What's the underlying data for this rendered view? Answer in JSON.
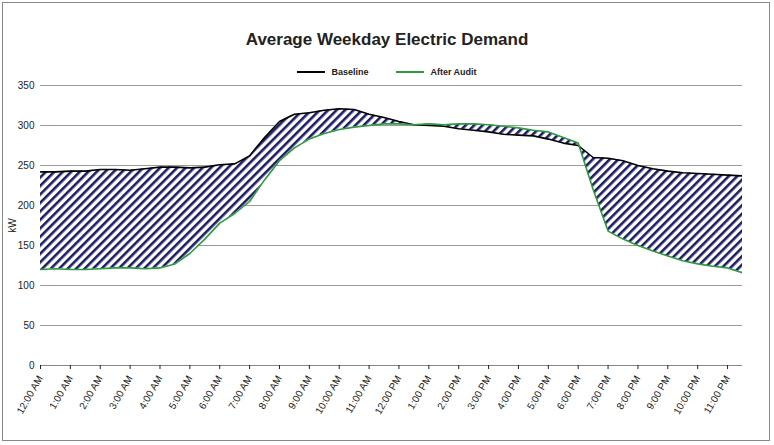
{
  "chart_data": {
    "type": "line",
    "title": "Average Weekday Electric Demand",
    "y_label": "kW",
    "categories": [
      "12:00 AM",
      null,
      "1:00 AM",
      null,
      "2:00 AM",
      null,
      "3:00 AM",
      null,
      "4:00 AM",
      null,
      "5:00 AM",
      null,
      "6:00 AM",
      null,
      "7:00 AM",
      null,
      "8:00 AM",
      null,
      "9:00 AM",
      null,
      "10:00 AM",
      null,
      "11:00 AM",
      null,
      "12:00 PM",
      null,
      "1:00 PM",
      null,
      "2:00 PM",
      null,
      "3:00 PM",
      null,
      "4:00 PM",
      null,
      "5:00 PM",
      null,
      "6:00 PM",
      null,
      "7:00 PM",
      null,
      "8:00 PM",
      null,
      "9:00 PM",
      null,
      "10:00 PM",
      null,
      "11:00 PM",
      null
    ],
    "series": [
      {
        "name": "Baseline",
        "color": "#000000",
        "values": [
          242,
          242,
          243,
          243,
          245,
          245,
          244,
          246,
          248,
          248,
          247,
          248,
          251,
          252,
          262,
          285,
          305,
          314,
          316,
          319,
          321,
          320,
          314,
          310,
          305,
          301,
          300,
          299,
          296,
          294,
          292,
          289,
          288,
          287,
          283,
          278,
          275,
          260,
          259,
          256,
          250,
          246,
          243,
          241,
          240,
          239,
          238,
          237
        ]
      },
      {
        "name": "After Audit",
        "color": "#2e9a3e",
        "values": [
          120,
          121,
          120,
          120,
          121,
          122,
          122,
          121,
          122,
          127,
          140,
          158,
          178,
          190,
          205,
          232,
          256,
          272,
          283,
          290,
          295,
          298,
          300,
          302,
          302,
          301,
          302,
          301,
          302,
          302,
          301,
          299,
          297,
          294,
          292,
          285,
          278,
          220,
          168,
          158,
          150,
          143,
          137,
          131,
          127,
          124,
          122,
          116
        ]
      }
    ],
    "ylim": [
      0,
      350
    ],
    "yticks": [
      0,
      50,
      100,
      150,
      200,
      250,
      300,
      350
    ],
    "grid": true,
    "legend": "top"
  }
}
